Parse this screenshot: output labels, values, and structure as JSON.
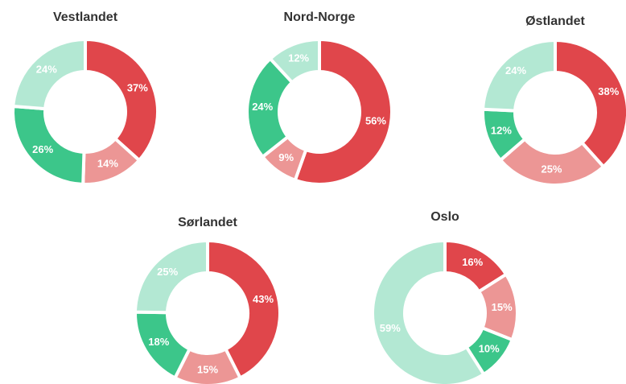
{
  "chart_data": [
    {
      "type": "donut",
      "title": "Vestlandet",
      "values": [
        37,
        14,
        26,
        24
      ],
      "value_labels": [
        "37%",
        "14%",
        "26%",
        "24%"
      ],
      "colors": [
        "#e0464b",
        "#ec9695",
        "#3cc68a",
        "#b3e8d3"
      ]
    },
    {
      "type": "donut",
      "title": "Nord-Norge",
      "values": [
        56,
        9,
        24,
        12
      ],
      "value_labels": [
        "56%",
        "9%",
        "24%",
        "12%"
      ],
      "colors": [
        "#e0464b",
        "#ec9695",
        "#3cc68a",
        "#b3e8d3"
      ]
    },
    {
      "type": "donut",
      "title": "Østlandet",
      "values": [
        38,
        25,
        12,
        24
      ],
      "value_labels": [
        "38%",
        "25%",
        "12%",
        "24%"
      ],
      "colors": [
        "#e0464b",
        "#ec9695",
        "#3cc68a",
        "#b3e8d3"
      ]
    },
    {
      "type": "donut",
      "title": "Sørlandet",
      "values": [
        43,
        15,
        18,
        25
      ],
      "value_labels": [
        "43%",
        "15%",
        "18%",
        "25%"
      ],
      "colors": [
        "#e0464b",
        "#ec9695",
        "#3cc68a",
        "#b3e8d3"
      ]
    },
    {
      "type": "donut",
      "title": "Oslo",
      "values": [
        16,
        15,
        10,
        59
      ],
      "value_labels": [
        "16%",
        "15%",
        "10%",
        "59%"
      ],
      "colors": [
        "#e0464b",
        "#ec9695",
        "#3cc68a",
        "#b3e8d3"
      ]
    }
  ]
}
